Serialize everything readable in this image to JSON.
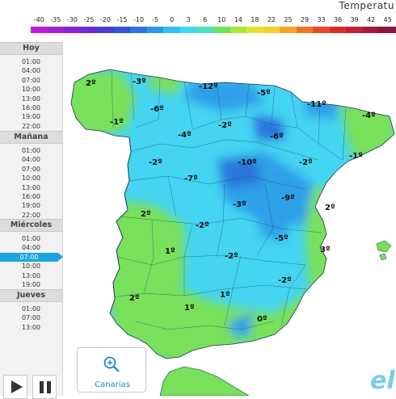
{
  "scale": {
    "title": "Temperatu",
    "labels": [
      "-40",
      "-35",
      "-30",
      "-25",
      "-20",
      "-15",
      "-10",
      "-5",
      "0",
      "3",
      "6",
      "10",
      "14",
      "18",
      "22",
      "25",
      "29",
      "33",
      "36",
      "39",
      "42",
      "45"
    ],
    "colors": [
      "#c21bd8",
      "#a520d8",
      "#8a22d6",
      "#6b2ad6",
      "#4a3ad8",
      "#3452dc",
      "#2e74e0",
      "#2c98e6",
      "#33bdf0",
      "#3fd8f0",
      "#4fe0c0",
      "#6fe35a",
      "#a8e63a",
      "#dfe52f",
      "#f5d02a",
      "#f7a325",
      "#f17423",
      "#e84a23",
      "#d92c2c",
      "#c21f36",
      "#a5183c",
      "#8a1440"
    ]
  },
  "timebar": {
    "days": [
      {
        "label": "Hoy",
        "hours": [
          "01:00",
          "04:00",
          "07:00",
          "10:00",
          "13:00",
          "16:00",
          "19:00",
          "22:00"
        ]
      },
      {
        "label": "Mañana",
        "hours": [
          "01:00",
          "04:00",
          "07:00",
          "10:00",
          "13:00",
          "16:00",
          "19:00",
          "22:00"
        ]
      },
      {
        "label": "Miércoles",
        "hours": [
          "01:00",
          "04:00",
          "07:00",
          "10:00",
          "13:00",
          "19:00"
        ]
      },
      {
        "label": "Jueves",
        "hours": [
          "01:00",
          "07:00",
          "13:00"
        ]
      }
    ],
    "selected": "Miércoles 07:00"
  },
  "map": {
    "colors": {
      "land_green": "#78e05a",
      "cold_cyan": "#45d4f2",
      "colder_blue": "#2ea0e8",
      "coldest": "#2a74dc",
      "sea": "#ffffff"
    },
    "temperatures": [
      {
        "name": "galicia-north",
        "text": "2º"
      },
      {
        "name": "asturias-west",
        "text": "-3º"
      },
      {
        "name": "cantabria",
        "text": "-12º"
      },
      {
        "name": "basque",
        "text": "-5º"
      },
      {
        "name": "pyrenees",
        "text": "-11º"
      },
      {
        "name": "catalonia",
        "text": "-4º"
      },
      {
        "name": "leon",
        "text": "-6º"
      },
      {
        "name": "ourense",
        "text": "-1º"
      },
      {
        "name": "palencia",
        "text": "-2º"
      },
      {
        "name": "soria",
        "text": "-6º"
      },
      {
        "name": "valladolid",
        "text": "-4º"
      },
      {
        "name": "tarragona",
        "text": "-1º"
      },
      {
        "name": "salamanca",
        "text": "-2º"
      },
      {
        "name": "segovia",
        "text": "-10º"
      },
      {
        "name": "teruel-north",
        "text": "-2º"
      },
      {
        "name": "avila",
        "text": "-7º"
      },
      {
        "name": "cuenca",
        "text": "-9º"
      },
      {
        "name": "caceres",
        "text": "2º"
      },
      {
        "name": "toledo",
        "text": "-3º"
      },
      {
        "name": "castellon",
        "text": "2º"
      },
      {
        "name": "badajoz",
        "text": "-2º"
      },
      {
        "name": "albacete",
        "text": "-5º"
      },
      {
        "name": "huelva-north",
        "text": "1º"
      },
      {
        "name": "ciudad-real",
        "text": "-2º"
      },
      {
        "name": "alicante",
        "text": "3º"
      },
      {
        "name": "murcia",
        "text": "-2º"
      },
      {
        "name": "huelva",
        "text": "2º"
      },
      {
        "name": "cordoba",
        "text": "1º"
      },
      {
        "name": "sevilla",
        "text": "1º"
      },
      {
        "name": "granada",
        "text": "0º"
      }
    ]
  },
  "canarias": {
    "label": "Canarias",
    "icon": "zoom-icon"
  },
  "logo": {
    "text": "el"
  }
}
